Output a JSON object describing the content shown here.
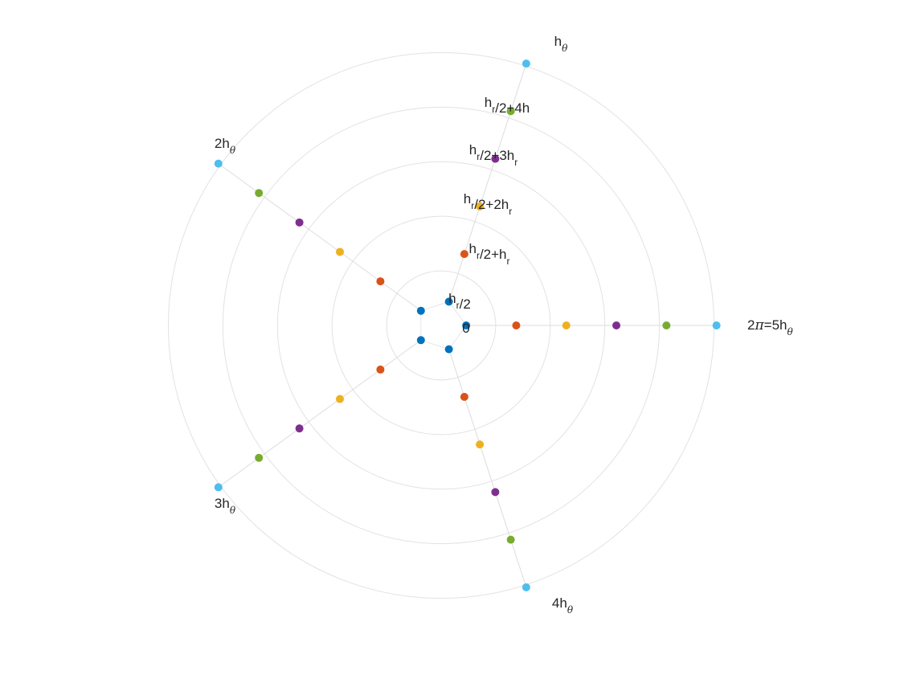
{
  "chart_data": {
    "type": "scatter",
    "coordinate_system": "polar",
    "grid": true,
    "rings": [
      1,
      2,
      3,
      4,
      5
    ],
    "radial_labels": [
      {
        "parts": [
          {
            "t": "0"
          }
        ]
      },
      {
        "parts": [
          {
            "t": "h"
          },
          {
            "t": "r",
            "sub": true
          },
          {
            "t": "/2"
          }
        ]
      },
      {
        "parts": [
          {
            "t": "h"
          },
          {
            "t": "r",
            "sub": true
          },
          {
            "t": "/2+h"
          },
          {
            "t": "r",
            "sub": true
          }
        ]
      },
      {
        "parts": [
          {
            "t": "h"
          },
          {
            "t": "r",
            "sub": true
          },
          {
            "t": "/2+2h"
          },
          {
            "t": "r",
            "sub": true
          }
        ]
      },
      {
        "parts": [
          {
            "t": "h"
          },
          {
            "t": "r",
            "sub": true
          },
          {
            "t": "/2+3h"
          },
          {
            "t": "r",
            "sub": true
          }
        ]
      },
      {
        "parts": [
          {
            "t": "h"
          },
          {
            "t": "r",
            "sub": true
          },
          {
            "t": "/2+4h"
          }
        ]
      }
    ],
    "angular_labels": [
      {
        "parts": [
          {
            "t": "2"
          },
          {
            "t": "π",
            "greek": true
          },
          {
            "t": "=5h"
          },
          {
            "t": "θ",
            "sub": true,
            "greek": true
          }
        ]
      },
      {
        "parts": [
          {
            "t": "h"
          },
          {
            "t": "θ",
            "sub": true,
            "greek": true
          }
        ]
      },
      {
        "parts": [
          {
            "t": "2h"
          },
          {
            "t": "θ",
            "sub": true,
            "greek": true
          }
        ]
      },
      {
        "parts": [
          {
            "t": "3h"
          },
          {
            "t": "θ",
            "sub": true,
            "greek": true
          }
        ]
      },
      {
        "parts": [
          {
            "t": "4h"
          },
          {
            "t": "θ",
            "sub": true,
            "greek": true
          }
        ]
      }
    ],
    "angles_deg": [
      0,
      72,
      144,
      216,
      288
    ],
    "series": [
      {
        "radius": 0.5,
        "color": "#0072BD"
      },
      {
        "radius": 1.5,
        "color": "#D95319"
      },
      {
        "radius": 2.5,
        "color": "#EDB120"
      },
      {
        "radius": 3.5,
        "color": "#7E2F8E"
      },
      {
        "radius": 4.5,
        "color": "#77AC30"
      },
      {
        "radius": 5.5,
        "color": "#4DBEEE"
      }
    ]
  }
}
